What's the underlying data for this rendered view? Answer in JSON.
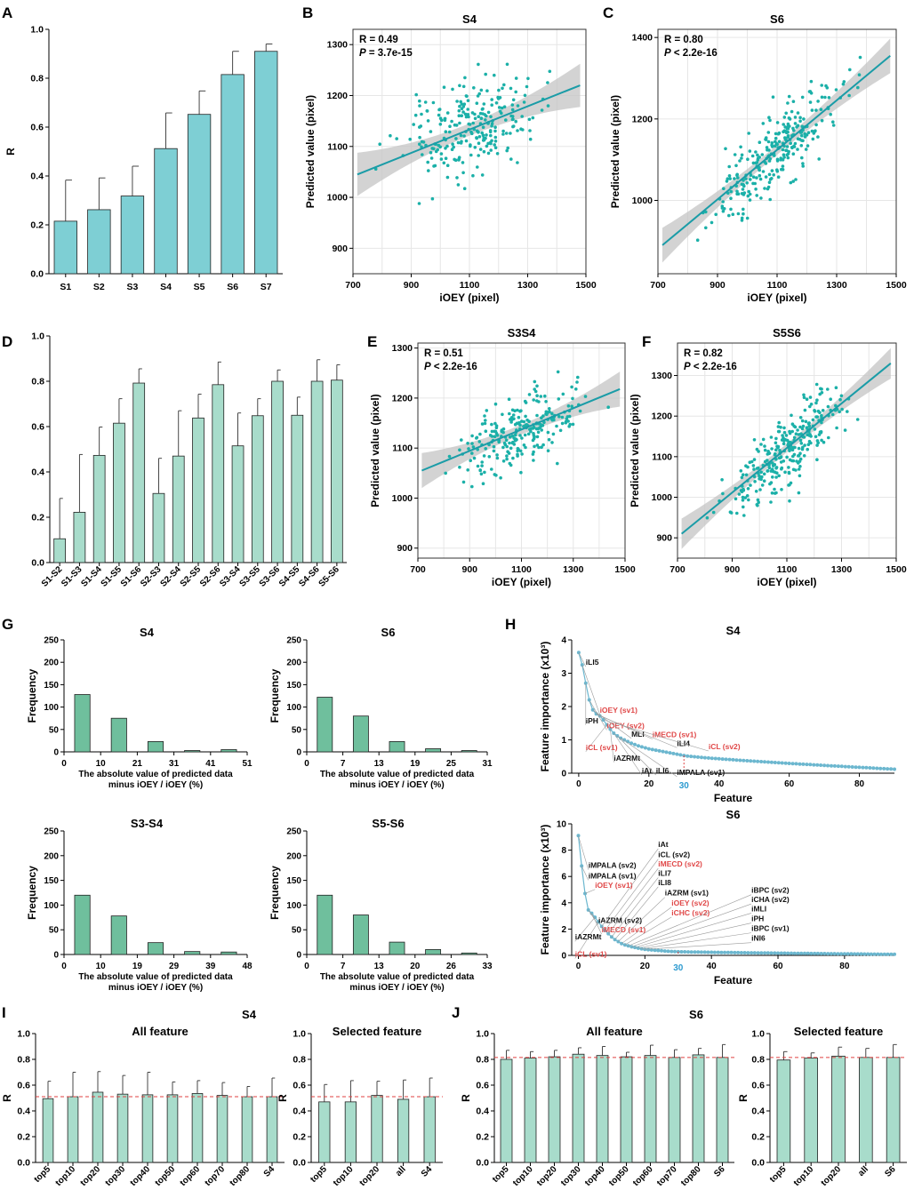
{
  "colors": {
    "bar_dark": "#7ecfd4",
    "bar_green": "#a8dccb",
    "hist_green": "#6fbf9d",
    "point": "#1bb0a8",
    "line": "#1a9ca7",
    "ci": "#c4c4c4",
    "ref_line": "#e04040",
    "red_label": "#e04848",
    "blue_label": "#2e9bd0",
    "imp_point": "#6cb7cf",
    "grid": "#e6e6e6"
  },
  "panel_labels": {
    "A": "A",
    "B": "B",
    "C": "C",
    "D": "D",
    "E": "E",
    "F": "F",
    "G": "G",
    "H": "H",
    "I": "I",
    "J": "J"
  },
  "chart_data": [
    {
      "id": "A",
      "type": "bar",
      "ylabel": "R",
      "ylim": [
        0,
        1.0
      ],
      "yticks": [
        "0.0",
        "0.2",
        "0.4",
        "0.6",
        "0.8",
        "1.0"
      ],
      "categories": [
        "S1",
        "S2",
        "S3",
        "S4",
        "S5",
        "S6",
        "S7"
      ],
      "values": [
        0.215,
        0.262,
        0.318,
        0.512,
        0.652,
        0.815,
        0.91
      ],
      "errors": [
        0.168,
        0.13,
        0.122,
        0.146,
        0.096,
        0.095,
        0.03
      ]
    },
    {
      "id": "B",
      "type": "scatter",
      "title": "S4",
      "xlabel": "iOEY (pixel)",
      "ylabel": "Predicted value (pixel)",
      "xlim": [
        700,
        1500
      ],
      "ylim": [
        850,
        1330
      ],
      "xticks": [
        "700",
        "900",
        "1100",
        "1300",
        "1500"
      ],
      "yticks": [
        "900",
        "1000",
        "1100",
        "1200",
        "1300"
      ],
      "stat_r": "R = 0.49",
      "stat_p_label": "P",
      "stat_p_value": " = 3.7e-15",
      "n_points": 250,
      "fit": {
        "x": [
          715,
          1480
        ],
        "y": [
          1045,
          1220
        ]
      }
    },
    {
      "id": "C",
      "type": "scatter",
      "title": "S6",
      "xlabel": "iOEY (pixel)",
      "ylabel": "Predicted value (pixel)",
      "xlim": [
        700,
        1500
      ],
      "ylim": [
        820,
        1420
      ],
      "xticks": [
        "700",
        "900",
        "1100",
        "1300",
        "1500"
      ],
      "yticks": [
        "1000",
        "1200",
        "1400"
      ],
      "stat_r": "R = 0.80",
      "stat_p_label": "P",
      "stat_p_value": " < 2.2e-16",
      "n_points": 280,
      "fit": {
        "x": [
          715,
          1480
        ],
        "y": [
          890,
          1355
        ]
      }
    },
    {
      "id": "D",
      "type": "bar",
      "ylabel": "",
      "ylim": [
        0,
        1.0
      ],
      "yticks": [
        "0.0",
        "0.2",
        "0.4",
        "0.6",
        "0.8",
        "1.0"
      ],
      "categories": [
        "S1-S2",
        "S1-S3",
        "S1-S4",
        "S1-S5",
        "S1-S6",
        "S2-S3",
        "S2-S4",
        "S2-S5",
        "S2-S6",
        "S3-S4",
        "S3-S5",
        "S3-S6",
        "S4-S5",
        "S4-S6",
        "S5-S6"
      ],
      "values": [
        0.105,
        0.222,
        0.473,
        0.615,
        0.792,
        0.305,
        0.47,
        0.638,
        0.785,
        0.515,
        0.648,
        0.8,
        0.65,
        0.8,
        0.805
      ],
      "errors": [
        0.178,
        0.255,
        0.125,
        0.108,
        0.063,
        0.155,
        0.2,
        0.105,
        0.1,
        0.145,
        0.075,
        0.05,
        0.08,
        0.095,
        0.068
      ]
    },
    {
      "id": "E",
      "type": "scatter",
      "title": "S3S4",
      "xlabel": "iOEY (pixel)",
      "ylabel": "Predicted value (pixel)",
      "xlim": [
        700,
        1500
      ],
      "ylim": [
        880,
        1310
      ],
      "xticks": [
        "700",
        "900",
        "1100",
        "1300",
        "1500"
      ],
      "yticks": [
        "900",
        "1000",
        "1100",
        "1200",
        "1300"
      ],
      "stat_r": "R = 0.51",
      "stat_p_label": "P",
      "stat_p_value": " < 2.2e-16",
      "n_points": 250,
      "fit": {
        "x": [
          715,
          1480
        ],
        "y": [
          1055,
          1218
        ]
      }
    },
    {
      "id": "F",
      "type": "scatter",
      "title": "S5S6",
      "xlabel": "iOEY (pixel)",
      "ylabel": "Predicted value (pixel)",
      "xlim": [
        700,
        1500
      ],
      "ylim": [
        850,
        1380
      ],
      "xticks": [
        "700",
        "900",
        "1100",
        "1300",
        "1500"
      ],
      "yticks": [
        "900",
        "1000",
        "1100",
        "1200",
        "1300"
      ],
      "stat_r": "R = 0.82",
      "stat_p_label": "P",
      "stat_p_value": " < 2.2e-16",
      "n_points": 280,
      "fit": {
        "x": [
          715,
          1480
        ],
        "y": [
          910,
          1330
        ]
      }
    },
    {
      "id": "G1",
      "type": "bar",
      "title": "S4",
      "ylabel": "Frequency",
      "xlabel": [
        "The absolute value of predicted data",
        "minus iOEY / iOEY (%)"
      ],
      "ylim": [
        0,
        250
      ],
      "yticks": [
        "0",
        "50",
        "100",
        "150",
        "200",
        "250"
      ],
      "xticks": [
        "0",
        "10",
        "21",
        "31",
        "41",
        "51"
      ],
      "values": [
        128,
        75,
        23,
        3,
        5
      ]
    },
    {
      "id": "G2",
      "type": "bar",
      "title": "S6",
      "ylabel": "Frequency",
      "xlabel": [
        "The absolute value of predicted data",
        "minus iOEY / iOEY (%)"
      ],
      "ylim": [
        0,
        250
      ],
      "yticks": [
        "0",
        "50",
        "100",
        "150",
        "200",
        "250"
      ],
      "xticks": [
        "0",
        "7",
        "13",
        "19",
        "25",
        "31"
      ],
      "values": [
        122,
        80,
        23,
        7,
        3
      ]
    },
    {
      "id": "G3",
      "type": "bar",
      "title": "S3-S4",
      "ylabel": "Frequency",
      "xlabel": [
        "The absolute value of predicted data",
        "minus iOEY / iOEY (%)"
      ],
      "ylim": [
        0,
        250
      ],
      "yticks": [
        "0",
        "50",
        "100",
        "150",
        "200",
        "250"
      ],
      "xticks": [
        "0",
        "10",
        "19",
        "29",
        "39",
        "48"
      ],
      "values": [
        120,
        78,
        24,
        6,
        5
      ]
    },
    {
      "id": "G4",
      "type": "bar",
      "title": "S5-S6",
      "ylabel": "Frequency",
      "xlabel": [
        "The absolute value of predicted data",
        "minus iOEY / iOEY (%)"
      ],
      "ylim": [
        0,
        250
      ],
      "yticks": [
        "0",
        "50",
        "100",
        "150",
        "200",
        "250"
      ],
      "xticks": [
        "0",
        "7",
        "13",
        "20",
        "26",
        "33"
      ],
      "values": [
        120,
        80,
        25,
        10,
        3
      ]
    },
    {
      "id": "H1",
      "type": "line",
      "title": "S4",
      "xlabel": "Feature",
      "ylabel": "Feature importance (x10³)",
      "xlim": [
        -2,
        90
      ],
      "ylim": [
        0,
        4
      ],
      "xticks": [
        "0",
        "20",
        "40",
        "60",
        "80"
      ],
      "yticks": [
        "0",
        "1",
        "2",
        "3",
        "4"
      ],
      "n": 91,
      "head": [
        3.62,
        3.25,
        2.7,
        2.2,
        1.9,
        1.78,
        1.72,
        1.6,
        1.45,
        1.32,
        1.2,
        1.12,
        1.05,
        1.0,
        0.95,
        0.9,
        0.86,
        0.82,
        0.79,
        0.76,
        0.73,
        0.71,
        0.69,
        0.67,
        0.65,
        0.63,
        0.61,
        0.59,
        0.57,
        0.55
      ],
      "tail": [
        0.53,
        0.12
      ],
      "marker_x": 30,
      "marker_label": "30",
      "labels": [
        {
          "text": "iLI5",
          "color": "black",
          "x": 2,
          "y": 3.25
        },
        {
          "text": "iOEY (sv1)",
          "color": "red",
          "x": 6,
          "y": 1.82
        },
        {
          "text": "iPH",
          "color": "black",
          "x": 2,
          "y": 1.5
        },
        {
          "text": "iOEY (sv2)",
          "color": "red",
          "x": 8,
          "y": 1.35
        },
        {
          "text": "MLI",
          "color": "black",
          "x": 15,
          "y": 1.1
        },
        {
          "text": "iMECD (sv1)",
          "color": "red",
          "x": 21,
          "y": 1.08
        },
        {
          "text": "iLI4",
          "color": "black",
          "x": 28,
          "y": 0.82
        },
        {
          "text": "iCL (sv2)",
          "color": "red",
          "x": 37,
          "y": 0.72
        },
        {
          "text": "iCL (sv1)",
          "color": "red",
          "x": 2,
          "y": 0.7
        },
        {
          "text": "iAZRMt",
          "color": "black",
          "x": 10,
          "y": 0.38
        },
        {
          "text": "iAt",
          "color": "black",
          "x": 18,
          "y": 0.0
        },
        {
          "text": "iLI6",
          "color": "black",
          "x": 22,
          "y": 0.0
        },
        {
          "text": "iMPALA (sv1)",
          "color": "black",
          "x": 28,
          "y": -0.05
        }
      ]
    },
    {
      "id": "H2",
      "type": "line",
      "title": "S6",
      "xlabel": "Feature",
      "ylabel": "Feature importance (x10³)",
      "xlim": [
        -2,
        95
      ],
      "ylim": [
        0,
        10
      ],
      "xticks": [
        "0",
        "20",
        "40",
        "60",
        "80"
      ],
      "yticks": [
        "0",
        "2",
        "4",
        "6",
        "8",
        "10"
      ],
      "n": 96,
      "head": [
        9.1,
        6.8,
        4.7,
        3.45,
        3.2,
        2.9,
        2.55,
        2.2,
        1.9,
        1.65,
        1.4,
        1.2,
        1.05,
        0.9,
        0.8,
        0.72,
        0.65,
        0.6,
        0.55,
        0.5,
        0.46,
        0.43,
        0.41,
        0.39,
        0.37,
        0.35,
        0.33,
        0.31,
        0.3,
        0.29
      ],
      "tail": [
        0.28,
        0.08
      ],
      "marker_x": 30,
      "marker_label": "30",
      "labels": [
        {
          "text": "iMPALA (sv2)",
          "color": "black",
          "x": 3,
          "y": 6.65
        },
        {
          "text": "iMPALA (sv1)",
          "color": "black",
          "x": 3,
          "y": 5.85
        },
        {
          "text": "iOEY (sv1)",
          "color": "red",
          "x": 5,
          "y": 5.15
        },
        {
          "text": "iAZRM (sv2)",
          "color": "black",
          "x": 6,
          "y": 2.45
        },
        {
          "text": "iMECD (sv1)",
          "color": "red",
          "x": 7,
          "y": 1.75
        },
        {
          "text": "iAZRMt",
          "color": "black",
          "x": -1,
          "y": 1.2
        },
        {
          "text": "iCL (sv1)",
          "color": "red",
          "x": -1,
          "y": -0.1
        },
        {
          "text": "iAt",
          "color": "black",
          "x": 24,
          "y": 8.25
        },
        {
          "text": "iCL (sv2)",
          "color": "black",
          "x": 24,
          "y": 7.45
        },
        {
          "text": "iMECD (sv2)",
          "color": "red",
          "x": 24,
          "y": 6.75
        },
        {
          "text": "iLI7",
          "color": "black",
          "x": 24,
          "y": 6.05
        },
        {
          "text": "iLI8",
          "color": "black",
          "x": 24,
          "y": 5.35
        },
        {
          "text": "iAZRM (sv1)",
          "color": "black",
          "x": 26,
          "y": 4.55
        },
        {
          "text": "iOEY (sv2)",
          "color": "red",
          "x": 28,
          "y": 3.8
        },
        {
          "text": "iCHC (sv2)",
          "color": "red",
          "x": 28,
          "y": 3.05
        },
        {
          "text": "iBPC (sv2)",
          "color": "black",
          "x": 52,
          "y": 4.75
        },
        {
          "text": "iCHA (sv2)",
          "color": "black",
          "x": 52,
          "y": 4.05
        },
        {
          "text": "iMLI",
          "color": "black",
          "x": 52,
          "y": 3.35
        },
        {
          "text": "iPH",
          "color": "black",
          "x": 52,
          "y": 2.6
        },
        {
          "text": "iBPC (sv1)",
          "color": "black",
          "x": 52,
          "y": 1.85
        },
        {
          "text": "iNI6",
          "color": "black",
          "x": 52,
          "y": 1.1
        }
      ]
    },
    {
      "id": "I1",
      "type": "bar",
      "title": "All feature",
      "ylabel": "R",
      "ylim": [
        0,
        1.0
      ],
      "yticks": [
        "0.0",
        "0.2",
        "0.4",
        "0.6",
        "0.8",
        "1.0"
      ],
      "categories": [
        "top5",
        "top10",
        "top20",
        "top30",
        "top40",
        "top50",
        "top60",
        "top70",
        "top80",
        "S4"
      ],
      "values": [
        0.495,
        0.51,
        0.545,
        0.53,
        0.525,
        0.525,
        0.535,
        0.52,
        0.51,
        0.51
      ],
      "errors": [
        0.135,
        0.19,
        0.16,
        0.145,
        0.175,
        0.1,
        0.1,
        0.1,
        0.08,
        0.145
      ],
      "ref": 0.51
    },
    {
      "id": "I2",
      "type": "bar",
      "title": "Selected feature",
      "ylabel": "R",
      "ylim": [
        0,
        1.0
      ],
      "yticks": [
        "0.0",
        "0.2",
        "0.4",
        "0.6",
        "0.8",
        "1.0"
      ],
      "categories": [
        "top5",
        "top10",
        "top20",
        "all",
        "S4"
      ],
      "values": [
        0.47,
        0.47,
        0.52,
        0.49,
        0.51
      ],
      "errors": [
        0.135,
        0.165,
        0.11,
        0.15,
        0.145
      ],
      "ref": 0.51
    },
    {
      "id": "J1",
      "type": "bar",
      "title": "All feature",
      "ylabel": "R",
      "ylim": [
        0,
        1.0
      ],
      "yticks": [
        "0.0",
        "0.2",
        "0.4",
        "0.6",
        "0.8",
        "1.0"
      ],
      "categories": [
        "top5",
        "top10",
        "top20",
        "top30",
        "top40",
        "top50",
        "top60",
        "top70",
        "top80",
        "S6"
      ],
      "values": [
        0.8,
        0.81,
        0.82,
        0.84,
        0.83,
        0.82,
        0.83,
        0.815,
        0.835,
        0.815
      ],
      "errors": [
        0.07,
        0.05,
        0.05,
        0.05,
        0.07,
        0.035,
        0.08,
        0.06,
        0.05,
        0.1
      ],
      "ref": 0.815
    },
    {
      "id": "J2",
      "type": "bar",
      "title": "Selected feature",
      "ylabel": "R",
      "ylim": [
        0,
        1.0
      ],
      "yticks": [
        "0.0",
        "0.2",
        "0.4",
        "0.6",
        "0.8",
        "1.0"
      ],
      "categories": [
        "top5",
        "top10",
        "top20",
        "all",
        "S6"
      ],
      "values": [
        0.795,
        0.81,
        0.825,
        0.815,
        0.815
      ],
      "errors": [
        0.065,
        0.04,
        0.07,
        0.07,
        0.1
      ],
      "ref": 0.815
    }
  ],
  "group_titles": {
    "I": "S4",
    "J": "S6"
  }
}
